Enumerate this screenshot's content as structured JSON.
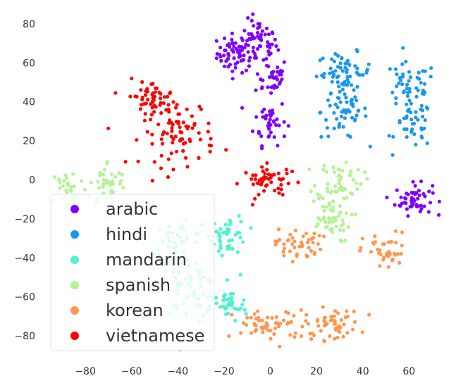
{
  "chart_data": {
    "type": "scatter",
    "title": "",
    "xlabel": "",
    "ylabel": "",
    "xlim": [
      -95,
      73
    ],
    "ylim": [
      -90,
      84
    ],
    "xticks": [
      -80,
      -60,
      -40,
      -20,
      0,
      20,
      40,
      60
    ],
    "yticks": [
      80,
      60,
      40,
      20,
      0,
      -20,
      -40,
      -60,
      -80
    ],
    "grid": false,
    "legend_position": "lower-left",
    "series": [
      {
        "name": "arabic",
        "color": "#8000ff",
        "clusters": [
          {
            "cx": -15,
            "cy": 65,
            "sx": 4,
            "sy": 5,
            "n": 60
          },
          {
            "cx": -5,
            "cy": 70,
            "sx": 4,
            "sy": 6,
            "n": 55
          },
          {
            "cx": 0,
            "cy": 53,
            "sx": 4,
            "sy": 5,
            "n": 35
          },
          {
            "cx": 0,
            "cy": 30,
            "sx": 3.5,
            "sy": 6,
            "n": 40
          },
          {
            "cx": 62,
            "cy": -10,
            "sx": 4,
            "sy": 4,
            "n": 55
          }
        ]
      },
      {
        "name": "hindi",
        "color": "#1996f3",
        "clusters": [
          {
            "cx": 32,
            "cy": 55,
            "sx": 6,
            "sy": 5,
            "n": 60
          },
          {
            "cx": 32,
            "cy": 35,
            "sx": 5,
            "sy": 7,
            "n": 55
          },
          {
            "cx": 60,
            "cy": 48,
            "sx": 6,
            "sy": 6,
            "n": 45
          },
          {
            "cx": 62,
            "cy": 28,
            "sx": 4,
            "sy": 6,
            "n": 40
          }
        ]
      },
      {
        "name": "mandarin",
        "color": "#4df3ce",
        "clusters": [
          {
            "cx": -18,
            "cy": -28,
            "sx": 4,
            "sy": 5,
            "n": 45
          },
          {
            "cx": -40,
            "cy": -30,
            "sx": 6,
            "sy": 4,
            "n": 30
          },
          {
            "cx": -35,
            "cy": -55,
            "sx": 7,
            "sy": 8,
            "n": 60
          },
          {
            "cx": -18,
            "cy": -65,
            "sx": 4,
            "sy": 4,
            "n": 35
          }
        ]
      },
      {
        "name": "spanish",
        "color": "#b3f396",
        "clusters": [
          {
            "cx": -87,
            "cy": -5,
            "sx": 4,
            "sy": 6,
            "n": 30
          },
          {
            "cx": -70,
            "cy": -2,
            "sx": 4,
            "sy": 6,
            "n": 40
          },
          {
            "cx": 30,
            "cy": 0,
            "sx": 5,
            "sy": 5,
            "n": 50
          },
          {
            "cx": 25,
            "cy": -20,
            "sx": 5,
            "sy": 6,
            "n": 50
          }
        ]
      },
      {
        "name": "korean",
        "color": "#ff964f",
        "clusters": [
          {
            "cx": 12,
            "cy": -33,
            "sx": 5,
            "sy": 4,
            "n": 45
          },
          {
            "cx": 50,
            "cy": -37,
            "sx": 5,
            "sy": 5,
            "n": 40
          },
          {
            "cx": 0,
            "cy": -75,
            "sx": 8,
            "sy": 4,
            "n": 60
          },
          {
            "cx": 27,
            "cy": -74,
            "sx": 6,
            "sy": 4,
            "n": 50
          }
        ]
      },
      {
        "name": "vietnamese",
        "color": "#ff0000",
        "clusters": [
          {
            "cx": -52,
            "cy": 43,
            "sx": 5,
            "sy": 4,
            "n": 40
          },
          {
            "cx": -40,
            "cy": 25,
            "sx": 8,
            "sy": 9,
            "n": 90
          },
          {
            "cx": 0,
            "cy": -1,
            "sx": 6,
            "sy": 4,
            "n": 50
          }
        ]
      }
    ]
  },
  "legend": {
    "items": [
      {
        "label": "arabic",
        "color": "#8000ff"
      },
      {
        "label": "hindi",
        "color": "#1996f3"
      },
      {
        "label": "mandarin",
        "color": "#4df3ce"
      },
      {
        "label": "spanish",
        "color": "#b3f396"
      },
      {
        "label": "korean",
        "color": "#ff964f"
      },
      {
        "label": "vietnamese",
        "color": "#ff0000"
      }
    ]
  }
}
